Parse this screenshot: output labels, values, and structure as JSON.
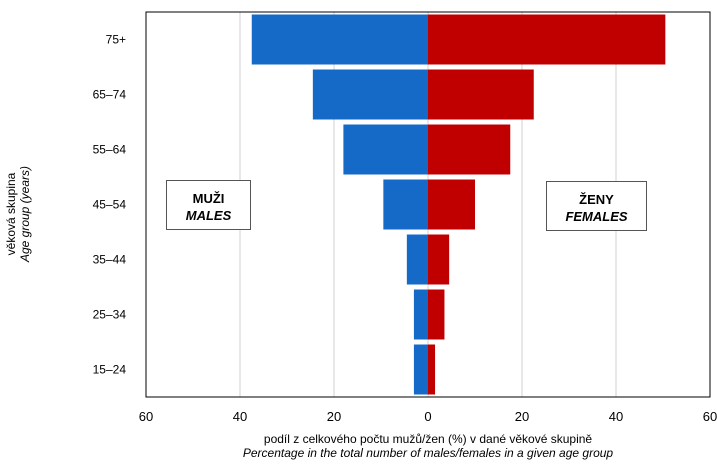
{
  "chart_data": {
    "type": "bar",
    "orientation": "horizontal-population-pyramid",
    "categories": [
      "75+",
      "65–74",
      "55–64",
      "45–54",
      "35–44",
      "25–34",
      "15–24"
    ],
    "series": [
      {
        "name": "MUŽI / MALES",
        "side": "left",
        "color": "#1569C7",
        "values": [
          37.5,
          24.5,
          18,
          9.5,
          4.5,
          3,
          3
        ]
      },
      {
        "name": "ŽENY / FEMALES",
        "side": "right",
        "color": "#C00000",
        "values": [
          50.5,
          22.5,
          17.5,
          10,
          4.5,
          3.5,
          1.5
        ]
      }
    ],
    "xlim": [
      -60,
      60
    ],
    "xticks": [
      -60,
      -40,
      -20,
      0,
      20,
      40,
      60
    ],
    "xtick_labels": [
      "60",
      "40",
      "20",
      "0",
      "20",
      "40",
      "60"
    ],
    "grid": "vertical",
    "xlabel_cz": "podíl z celkového počtu mužů/žen (%) v dané věkové skupině",
    "xlabel_en": "Percentage in the total number of males/females in a given age group",
    "ylabel_cz": "věková skupina",
    "ylabel_en": "Age group (years)"
  },
  "legend": {
    "males_cz": "MUŽI",
    "males_en": "MALES",
    "females_cz": "ŽENY",
    "females_en": "FEMALES"
  }
}
